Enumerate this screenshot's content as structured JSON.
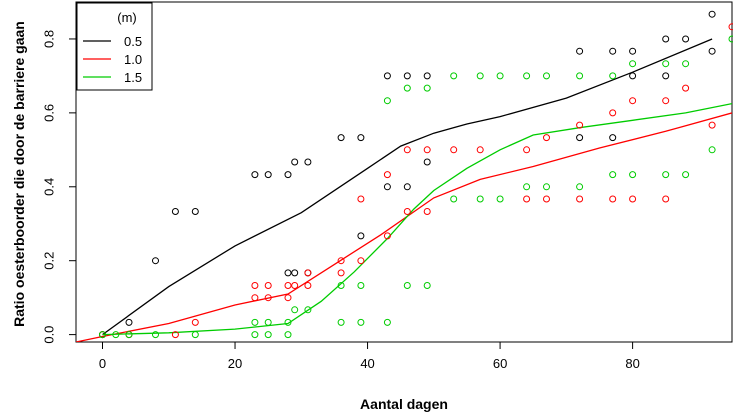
{
  "chart_data": {
    "type": "scatter",
    "xlabel": "Aantal dagen",
    "ylabel": "Ratio oesterboorder die door de barriere gaan",
    "xlim": [
      -4,
      95
    ],
    "ylim": [
      -0.02,
      0.9
    ],
    "x_ticks": [
      0,
      20,
      40,
      60,
      80
    ],
    "y_ticks": [
      0.0,
      0.2,
      0.4,
      0.6,
      0.8
    ],
    "x_tick_labels": [
      "0",
      "20",
      "40",
      "60",
      "80"
    ],
    "y_tick_labels": [
      "0.0",
      "0.2",
      "0.4",
      "0.6",
      "0.8"
    ],
    "legend": {
      "title": "(m)",
      "position": "top-left"
    },
    "series": [
      {
        "name": "0.5",
        "color": "#000000",
        "points": [
          [
            0,
            0.0
          ],
          [
            4,
            0.033
          ],
          [
            8,
            0.2
          ],
          [
            11,
            0.333
          ],
          [
            14,
            0.333
          ],
          [
            23,
            0.433
          ],
          [
            25,
            0.433
          ],
          [
            28,
            0.433
          ],
          [
            28,
            0.167
          ],
          [
            29,
            0.467
          ],
          [
            29,
            0.167
          ],
          [
            31,
            0.467
          ],
          [
            31,
            0.167
          ],
          [
            36,
            0.533
          ],
          [
            39,
            0.533
          ],
          [
            39,
            0.267
          ],
          [
            43,
            0.7
          ],
          [
            43,
            0.4
          ],
          [
            46,
            0.7
          ],
          [
            46,
            0.4
          ],
          [
            49,
            0.7
          ],
          [
            49,
            0.467
          ],
          [
            72,
            0.767
          ],
          [
            72,
            0.533
          ],
          [
            77,
            0.767
          ],
          [
            77,
            0.533
          ],
          [
            80,
            0.767
          ],
          [
            80,
            0.7
          ],
          [
            85,
            0.8
          ],
          [
            85,
            0.7
          ],
          [
            88,
            0.8
          ],
          [
            92,
            0.867
          ],
          [
            92,
            0.767
          ]
        ],
        "line": [
          [
            0,
            0.0
          ],
          [
            10,
            0.13
          ],
          [
            20,
            0.24
          ],
          [
            30,
            0.33
          ],
          [
            40,
            0.45
          ],
          [
            45,
            0.51
          ],
          [
            50,
            0.545
          ],
          [
            55,
            0.57
          ],
          [
            60,
            0.59
          ],
          [
            70,
            0.64
          ],
          [
            80,
            0.71
          ],
          [
            92,
            0.8
          ]
        ]
      },
      {
        "name": "1.0",
        "color": "#ff0000",
        "points": [
          [
            0,
            0.0
          ],
          [
            4,
            0.0
          ],
          [
            11,
            0.0
          ],
          [
            14,
            0.033
          ],
          [
            23,
            0.133
          ],
          [
            23,
            0.1
          ],
          [
            25,
            0.133
          ],
          [
            25,
            0.1
          ],
          [
            28,
            0.133
          ],
          [
            28,
            0.1
          ],
          [
            29,
            0.133
          ],
          [
            31,
            0.167
          ],
          [
            31,
            0.133
          ],
          [
            36,
            0.2
          ],
          [
            36,
            0.167
          ],
          [
            39,
            0.367
          ],
          [
            39,
            0.2
          ],
          [
            43,
            0.433
          ],
          [
            43,
            0.267
          ],
          [
            46,
            0.5
          ],
          [
            46,
            0.333
          ],
          [
            49,
            0.5
          ],
          [
            49,
            0.333
          ],
          [
            53,
            0.5
          ],
          [
            57,
            0.5
          ],
          [
            64,
            0.5
          ],
          [
            64,
            0.367
          ],
          [
            67,
            0.533
          ],
          [
            67,
            0.367
          ],
          [
            72,
            0.567
          ],
          [
            72,
            0.367
          ],
          [
            77,
            0.6
          ],
          [
            77,
            0.367
          ],
          [
            80,
            0.633
          ],
          [
            80,
            0.367
          ],
          [
            85,
            0.633
          ],
          [
            85,
            0.367
          ],
          [
            88,
            0.667
          ],
          [
            92,
            0.567
          ],
          [
            95,
            0.833
          ]
        ],
        "line": [
          [
            -4,
            -0.02
          ],
          [
            0,
            -0.005
          ],
          [
            10,
            0.03
          ],
          [
            20,
            0.08
          ],
          [
            28,
            0.11
          ],
          [
            35,
            0.19
          ],
          [
            42,
            0.27
          ],
          [
            50,
            0.37
          ],
          [
            57,
            0.42
          ],
          [
            65,
            0.455
          ],
          [
            75,
            0.505
          ],
          [
            85,
            0.55
          ],
          [
            95,
            0.6
          ]
        ]
      },
      {
        "name": "1.5",
        "color": "#00cc00",
        "points": [
          [
            0,
            0.0
          ],
          [
            2,
            0.0
          ],
          [
            4,
            0.0
          ],
          [
            8,
            0.0
          ],
          [
            14,
            0.0
          ],
          [
            23,
            0.033
          ],
          [
            23,
            0.0
          ],
          [
            25,
            0.033
          ],
          [
            25,
            0.0
          ],
          [
            28,
            0.033
          ],
          [
            28,
            0.0
          ],
          [
            29,
            0.067
          ],
          [
            31,
            0.067
          ],
          [
            36,
            0.133
          ],
          [
            36,
            0.033
          ],
          [
            39,
            0.133
          ],
          [
            39,
            0.033
          ],
          [
            43,
            0.633
          ],
          [
            43,
            0.033
          ],
          [
            46,
            0.667
          ],
          [
            46,
            0.133
          ],
          [
            49,
            0.667
          ],
          [
            49,
            0.133
          ],
          [
            53,
            0.7
          ],
          [
            53,
            0.367
          ],
          [
            57,
            0.7
          ],
          [
            57,
            0.367
          ],
          [
            60,
            0.7
          ],
          [
            60,
            0.367
          ],
          [
            64,
            0.7
          ],
          [
            64,
            0.4
          ],
          [
            67,
            0.7
          ],
          [
            67,
            0.4
          ],
          [
            72,
            0.7
          ],
          [
            72,
            0.4
          ],
          [
            77,
            0.7
          ],
          [
            77,
            0.433
          ],
          [
            80,
            0.733
          ],
          [
            80,
            0.433
          ],
          [
            85,
            0.733
          ],
          [
            85,
            0.433
          ],
          [
            88,
            0.733
          ],
          [
            88,
            0.433
          ],
          [
            92,
            0.5
          ],
          [
            95,
            0.8
          ]
        ],
        "line": [
          [
            0,
            0.0
          ],
          [
            10,
            0.005
          ],
          [
            20,
            0.015
          ],
          [
            28,
            0.03
          ],
          [
            33,
            0.09
          ],
          [
            38,
            0.17
          ],
          [
            43,
            0.26
          ],
          [
            47,
            0.34
          ],
          [
            50,
            0.39
          ],
          [
            55,
            0.45
          ],
          [
            60,
            0.5
          ],
          [
            65,
            0.54
          ],
          [
            72,
            0.56
          ],
          [
            80,
            0.58
          ],
          [
            88,
            0.6
          ],
          [
            95,
            0.625
          ]
        ]
      }
    ]
  }
}
